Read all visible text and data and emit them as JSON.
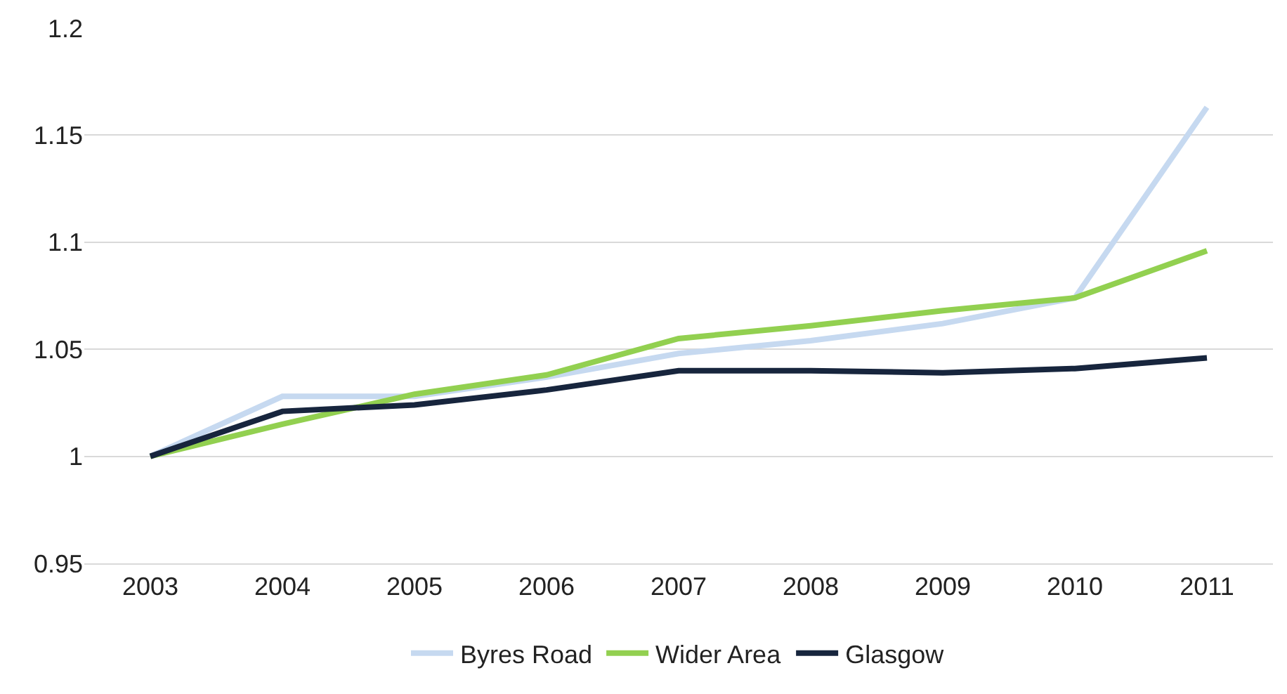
{
  "chart_data": {
    "type": "line",
    "categories": [
      "2003",
      "2004",
      "2005",
      "2006",
      "2007",
      "2008",
      "2009",
      "2010",
      "2011"
    ],
    "series": [
      {
        "name": "Byres Road",
        "color": "#c6d9f0",
        "values": [
          1.0,
          1.028,
          1.028,
          1.037,
          1.048,
          1.054,
          1.062,
          1.074,
          1.163
        ]
      },
      {
        "name": "Wider Area",
        "color": "#92d050",
        "values": [
          1.0,
          1.015,
          1.029,
          1.038,
          1.055,
          1.061,
          1.068,
          1.074,
          1.096
        ]
      },
      {
        "name": "Glasgow",
        "color": "#17253d",
        "values": [
          1.0,
          1.021,
          1.024,
          1.031,
          1.04,
          1.04,
          1.039,
          1.041,
          1.046
        ]
      }
    ],
    "ylim": [
      0.95,
      1.2
    ],
    "yticks": [
      0.95,
      1,
      1.05,
      1.1,
      1.15,
      1.2
    ],
    "grid": "y",
    "legend": "bottom",
    "marker": "none",
    "line_style": "solid"
  }
}
